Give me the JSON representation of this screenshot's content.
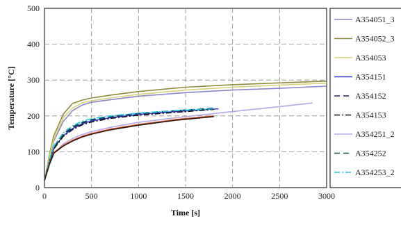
{
  "chart_data": {
    "type": "line",
    "xlabel": "Time [s]",
    "ylabel": "Temperature [°C]",
    "xlim": [
      0,
      3000
    ],
    "ylim": [
      0,
      500
    ],
    "x_ticks": [
      "0",
      "500",
      "1000",
      "1500",
      "2000",
      "2500",
      "3000"
    ],
    "y_ticks": [
      "0",
      "100",
      "200",
      "300",
      "400",
      "500"
    ],
    "grid": true,
    "legend_position": "right",
    "series": [
      {
        "name": "A354051_3",
        "color": "#8a86c8",
        "dash": "none",
        "x": [
          0,
          50,
          100,
          200,
          300,
          400,
          500,
          700,
          1000,
          1500,
          2000,
          2500,
          3000
        ],
        "y": [
          20,
          80,
          130,
          185,
          215,
          230,
          238,
          245,
          255,
          265,
          272,
          277,
          283
        ]
      },
      {
        "name": "A354052_3",
        "color": "#8f8a3a",
        "dash": "none",
        "x": [
          0,
          50,
          100,
          200,
          300,
          400,
          500,
          700,
          1000,
          1500,
          2000,
          2500,
          3000
        ],
        "y": [
          20,
          90,
          145,
          205,
          235,
          244,
          250,
          258,
          268,
          280,
          287,
          292,
          297
        ]
      },
      {
        "name": "A354053",
        "color": "#d8d27a",
        "dash": "none",
        "x": [
          0,
          50,
          100,
          200,
          300,
          400,
          500,
          700,
          1000,
          1500,
          2000,
          2500,
          3000
        ],
        "y": [
          20,
          85,
          135,
          195,
          222,
          236,
          242,
          250,
          260,
          272,
          280,
          286,
          291
        ]
      },
      {
        "name": "A354151",
        "color": "#3a3ad8",
        "dash": "none",
        "x": [
          0,
          50,
          100,
          200,
          300,
          400,
          500,
          700,
          1000,
          1400,
          1850
        ],
        "y": [
          20,
          70,
          110,
          145,
          165,
          178,
          186,
          195,
          204,
          212,
          220
        ]
      },
      {
        "name": "A354152",
        "color": "#22226a",
        "dash": "8,5",
        "x": [
          0,
          50,
          100,
          200,
          300,
          400,
          500,
          700,
          1000,
          1400,
          1800
        ],
        "y": [
          20,
          72,
          112,
          148,
          168,
          180,
          188,
          197,
          206,
          214,
          222
        ]
      },
      {
        "name": "A354153",
        "color": "#111111",
        "dash": "8,3,2,3",
        "x": [
          0,
          50,
          100,
          200,
          300,
          400,
          500,
          700,
          1000,
          1400,
          1800
        ],
        "y": [
          20,
          70,
          108,
          143,
          162,
          175,
          183,
          193,
          202,
          210,
          218
        ]
      },
      {
        "name": "A354251_2",
        "color": "#b6a8e8",
        "dash": "none",
        "x": [
          0,
          50,
          100,
          200,
          300,
          400,
          500,
          700,
          1000,
          1500,
          2000,
          2500,
          2850
        ],
        "y": [
          20,
          60,
          95,
          122,
          137,
          148,
          156,
          168,
          182,
          198,
          212,
          226,
          236
        ]
      },
      {
        "name": "A354252",
        "color": "#0f5a52",
        "dash": "8,5",
        "x": [
          0,
          50,
          100,
          200,
          300,
          400,
          500,
          700,
          1000,
          1400,
          1800
        ],
        "y": [
          20,
          73,
          113,
          150,
          170,
          182,
          190,
          199,
          207,
          215,
          221
        ]
      },
      {
        "name": "A354253_2",
        "color": "#22c8e0",
        "dash": "8,3,2,3",
        "x": [
          0,
          50,
          100,
          200,
          300,
          400,
          500,
          700,
          1000,
          1400,
          1800
        ],
        "y": [
          20,
          74,
          116,
          153,
          173,
          185,
          192,
          200,
          208,
          215,
          220
        ]
      },
      {
        "name": "",
        "color": "#e05020",
        "dash": "none",
        "x": [
          0,
          50,
          100,
          200,
          300,
          400,
          500,
          700,
          1000,
          1400,
          1800
        ],
        "y": [
          20,
          65,
          98,
          118,
          132,
          143,
          151,
          163,
          176,
          190,
          200
        ]
      },
      {
        "name": "",
        "color": "#2a1a10",
        "dash": "none",
        "x": [
          0,
          50,
          100,
          200,
          300,
          400,
          500,
          700,
          1000,
          1400,
          1800
        ],
        "y": [
          20,
          64,
          96,
          116,
          130,
          141,
          149,
          161,
          174,
          188,
          198
        ]
      }
    ]
  }
}
